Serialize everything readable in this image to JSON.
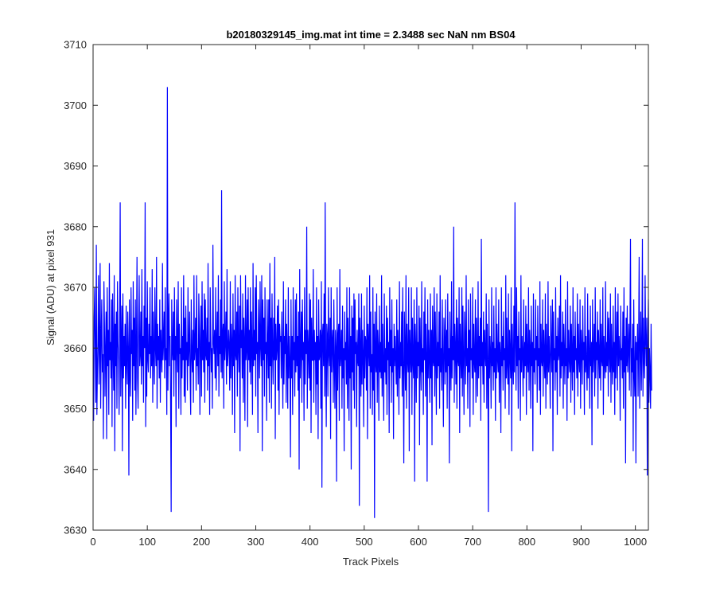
{
  "chart_data": {
    "type": "line",
    "title": "b20180329145_img.mat int time = 2.3488 sec  NaN nm BS04",
    "xlabel": "Track Pixels",
    "ylabel": "Signal (ADU) at pixel 931",
    "xlim": [
      0,
      1024
    ],
    "ylim": [
      3630,
      3710
    ],
    "xticks": [
      0,
      100,
      200,
      300,
      400,
      500,
      600,
      700,
      800,
      900,
      1000
    ],
    "yticks": [
      3630,
      3640,
      3650,
      3660,
      3670,
      3680,
      3690,
      3700,
      3710
    ],
    "grid": false,
    "line_color": "#0000ff",
    "x_start": 1,
    "x_step": 1,
    "values": [
      3648,
      3665,
      3670,
      3659,
      3651,
      3677,
      3649,
      3656,
      3661,
      3672,
      3654,
      3660,
      3674,
      3650,
      3662,
      3668,
      3656,
      3659,
      3645,
      3671,
      3664,
      3652,
      3660,
      3666,
      3645,
      3670,
      3657,
      3663,
      3649,
      3674,
      3658,
      3661,
      3655,
      3668,
      3647,
      3669,
      3660,
      3653,
      3672,
      3643,
      3664,
      3657,
      3666,
      3650,
      3671,
      3661,
      3658,
      3649,
      3663,
      3684,
      3652,
      3660,
      3667,
      3643,
      3669,
      3655,
      3662,
      3657,
      3664,
      3650,
      3667,
      3658,
      3654,
      3666,
      3660,
      3639,
      3668,
      3656,
      3652,
      3670,
      3659,
      3663,
      3648,
      3671,
      3657,
      3665,
      3653,
      3668,
      3649,
      3661,
      3675,
      3655,
      3650,
      3663,
      3672,
      3657,
      3659,
      3666,
      3654,
      3673,
      3657,
      3662,
      3651,
      3667,
      3660,
      3684,
      3647,
      3665,
      3652,
      3671,
      3658,
      3656,
      3664,
      3659,
      3670,
      3655,
      3662,
      3657,
      3673,
      3651,
      3666,
      3659,
      3654,
      3670,
      3660,
      3657,
      3675,
      3650,
      3664,
      3658,
      3662,
      3655,
      3668,
      3651,
      3663,
      3659,
      3656,
      3674,
      3658,
      3661,
      3666,
      3655,
      3670,
      3658,
      3660,
      3649,
      3703,
      3653,
      3664,
      3669,
      3657,
      3662,
      3651,
      3633,
      3668,
      3660,
      3658,
      3666,
      3652,
      3670,
      3658,
      3662,
      3647,
      3668,
      3661,
      3656,
      3671,
      3650,
      3664,
      3659,
      3660,
      3649,
      3670,
      3655,
      3662,
      3658,
      3672,
      3652,
      3665,
      3651,
      3667,
      3658,
      3661,
      3653,
      3670,
      3657,
      3660,
      3666,
      3655,
      3649,
      3668,
      3659,
      3656,
      3663,
      3651,
      3672,
      3658,
      3660,
      3665,
      3653,
      3672,
      3657,
      3660,
      3654,
      3669,
      3663,
      3649,
      3661,
      3667,
      3652,
      3671,
      3658,
      3663,
      3656,
      3669,
      3651,
      3668,
      3659,
      3658,
      3665,
      3653,
      3674,
      3657,
      3661,
      3649,
      3670,
      3662,
      3656,
      3660,
      3650,
      3677,
      3661,
      3659,
      3663,
      3655,
      3670,
      3653,
      3661,
      3666,
      3657,
      3672,
      3652,
      3662,
      3659,
      3668,
      3656,
      3686,
      3655,
      3662,
      3664,
      3650,
      3671,
      3658,
      3661,
      3666,
      3654,
      3673,
      3657,
      3659,
      3663,
      3660,
      3653,
      3671,
      3655,
      3664,
      3661,
      3649,
      3669,
      3657,
      3663,
      3646,
      3672,
      3659,
      3658,
      3666,
      3652,
      3670,
      3660,
      3656,
      3667,
      3643,
      3672,
      3660,
      3663,
      3655,
      3669,
      3651,
      3665,
      3661,
      3648,
      3672,
      3658,
      3660,
      3668,
      3647,
      3670,
      3658,
      3663,
      3656,
      3670,
      3654,
      3666,
      3660,
      3649,
      3674,
      3657,
      3663,
      3658,
      3670,
      3652,
      3672,
      3659,
      3661,
      3646,
      3668,
      3663,
      3655,
      3671,
      3660,
      3657,
      3672,
      3643,
      3668,
      3658,
      3665,
      3652,
      3670,
      3659,
      3661,
      3648,
      3668,
      3661,
      3655,
      3668,
      3651,
      3674,
      3657,
      3665,
      3650,
      3669,
      3660,
      3654,
      3665,
      3658,
      3675,
      3645,
      3664,
      3658,
      3660,
      3667,
      3653,
      3668,
      3649,
      3664,
      3661,
      3662,
      3655,
      3666,
      3659,
      3650,
      3671,
      3654,
      3662,
      3659,
      3668,
      3651,
      3664,
      3659,
      3650,
      3670,
      3655,
      3662,
      3658,
      3642,
      3668,
      3655,
      3662,
      3649,
      3670,
      3658,
      3661,
      3652,
      3668,
      3656,
      3669,
      3657,
      3662,
      3653,
      3666,
      3640,
      3673,
      3655,
      3660,
      3666,
      3651,
      3668,
      3658,
      3661,
      3648,
      3670,
      3654,
      3663,
      3659,
      3680,
      3650,
      3663,
      3660,
      3655,
      3669,
      3653,
      3668,
      3646,
      3665,
      3658,
      3658,
      3673,
      3651,
      3663,
      3658,
      3661,
      3649,
      3670,
      3654,
      3662,
      3645,
      3668,
      3658,
      3659,
      3663,
      3650,
      3671,
      3637,
      3662,
      3664,
      3657,
      3669,
      3652,
      3684,
      3658,
      3647,
      3664,
      3662,
      3652,
      3670,
      3659,
      3657,
      3665,
      3645,
      3670,
      3656,
      3661,
      3663,
      3651,
      3668,
      3658,
      3650,
      3663,
      3660,
      3638,
      3670,
      3653,
      3662,
      3664,
      3648,
      3673,
      3657,
      3659,
      3663,
      3650,
      3667,
      3655,
      3660,
      3643,
      3666,
      3658,
      3661,
      3654,
      3670,
      3650,
      3665,
      3658,
      3648,
      3670,
      3655,
      3662,
      3640,
      3667,
      3656,
      3665,
      3653,
      3669,
      3650,
      3668,
      3659,
      3661,
      3647,
      3663,
      3658,
      3657,
      3669,
      3634,
      3665,
      3660,
      3652,
      3669,
      3654,
      3663,
      3659,
      3647,
      3667,
      3655,
      3662,
      3661,
      3653,
      3670,
      3645,
      3664,
      3660,
      3657,
      3672,
      3650,
      3666,
      3656,
      3659,
      3649,
      3670,
      3653,
      3664,
      3632,
      3666,
      3658,
      3656,
      3669,
      3651,
      3663,
      3660,
      3648,
      3667,
      3656,
      3661,
      3655,
      3672,
      3652,
      3664,
      3657,
      3648,
      3669,
      3656,
      3660,
      3654,
      3667,
      3649,
      3665,
      3658,
      3661,
      3646,
      3670,
      3657,
      3663,
      3651,
      3668,
      3656,
      3660,
      3645,
      3664,
      3657,
      3662,
      3658,
      3654,
      3668,
      3652,
      3663,
      3659,
      3649,
      3671,
      3655,
      3661,
      3657,
      3666,
      3652,
      3670,
      3656,
      3641,
      3666,
      3660,
      3653,
      3672,
      3650,
      3664,
      3658,
      3656,
      3670,
      3643,
      3663,
      3659,
      3656,
      3670,
      3649,
      3665,
      3658,
      3655,
      3668,
      3638,
      3664,
      3660,
      3651,
      3670,
      3655,
      3661,
      3657,
      3667,
      3644,
      3665,
      3658,
      3653,
      3671,
      3656,
      3660,
      3649,
      3666,
      3658,
      3670,
      3652,
      3664,
      3659,
      3638,
      3668,
      3655,
      3663,
      3658,
      3651,
      3669,
      3655,
      3663,
      3644,
      3667,
      3658,
      3657,
      3670,
      3652,
      3666,
      3658,
      3649,
      3669,
      3655,
      3661,
      3657,
      3666,
      3650,
      3672,
      3656,
      3660,
      3653,
      3668,
      3658,
      3647,
      3665,
      3661,
      3654,
      3668,
      3656,
      3663,
      3650,
      3669,
      3657,
      3660,
      3641,
      3666,
      3659,
      3653,
      3671,
      3655,
      3662,
      3658,
      3680,
      3651,
      3664,
      3660,
      3654,
      3668,
      3650,
      3665,
      3658,
      3657,
      3670,
      3646,
      3664,
      3659,
      3655,
      3670,
      3652,
      3667,
      3658,
      3649,
      3666,
      3661,
      3654,
      3672,
      3657,
      3660,
      3650,
      3668,
      3656,
      3663,
      3647,
      3669,
      3658,
      3660,
      3655,
      3670,
      3649,
      3664,
      3658,
      3656,
      3668,
      3651,
      3665,
      3659,
      3652,
      3671,
      3655,
      3662,
      3657,
      3665,
      3648,
      3678,
      3657,
      3661,
      3654,
      3666,
      3651,
      3663,
      3659,
      3657,
      3669,
      3650,
      3664,
      3658,
      3633,
      3668,
      3655,
      3662,
      3659,
      3650,
      3670,
      3657,
      3661,
      3653,
      3667,
      3656,
      3660,
      3648,
      3670,
      3655,
      3664,
      3658,
      3656,
      3668,
      3651,
      3661,
      3659,
      3646,
      3670,
      3657,
      3662,
      3653,
      3666,
      3658,
      3660,
      3650,
      3672,
      3655,
      3665,
      3657,
      3654,
      3669,
      3649,
      3663,
      3659,
      3655,
      3670,
      3643,
      3664,
      3658,
      3654,
      3667,
      3656,
      3684,
      3660,
      3653,
      3670,
      3657,
      3662,
      3650,
      3666,
      3658,
      3660,
      3648,
      3672,
      3656,
      3662,
      3659,
      3652,
      3668,
      3655,
      3661,
      3657,
      3667,
      3649,
      3664,
      3658,
      3656,
      3670,
      3653,
      3663,
      3660,
      3650,
      3667,
      3657,
      3661,
      3643,
      3669,
      3656,
      3660,
      3654,
      3668,
      3658,
      3662,
      3651,
      3667,
      3657,
      3660,
      3653,
      3671,
      3649,
      3664,
      3658,
      3657,
      3668,
      3652,
      3663,
      3659,
      3655,
      3669,
      3650,
      3664,
      3658,
      3654,
      3671,
      3656,
      3662,
      3658,
      3650,
      3667,
      3660,
      3656,
      3668,
      3643,
      3666,
      3658,
      3660,
      3653,
      3670,
      3656,
      3662,
      3649,
      3665,
      3658,
      3659,
      3667,
      3652,
      3672,
      3655,
      3661,
      3657,
      3666,
      3650,
      3664,
      3659,
      3654,
      3668,
      3657,
      3660,
      3648,
      3671,
      3655,
      3663,
      3658,
      3656,
      3667,
      3651,
      3664,
      3659,
      3653,
      3670,
      3656,
      3662,
      3649,
      3666,
      3658,
      3660,
      3655,
      3669,
      3652,
      3664,
      3658,
      3656,
      3668,
      3650,
      3663,
      3660,
      3654,
      3667,
      3658,
      3661,
      3649,
      3670,
      3656,
      3662,
      3657,
      3653,
      3669,
      3655,
      3663,
      3659,
      3650,
      3667,
      3657,
      3661,
      3644,
      3668,
      3656,
      3659,
      3664,
      3652,
      3670,
      3655,
      3661,
      3658,
      3666,
      3650,
      3663,
      3659,
      3655,
      3668,
      3653,
      3664,
      3658,
      3657,
      3670,
      3649,
      3662,
      3658,
      3655,
      3671,
      3656,
      3661,
      3657,
      3666,
      3652,
      3665,
      3659,
      3656,
      3669,
      3651,
      3664,
      3658,
      3654,
      3667,
      3656,
      3661,
      3649,
      3670,
      3655,
      3660,
      3666,
      3653,
      3669,
      3657,
      3662,
      3659,
      3648,
      3667,
      3658,
      3660,
      3655,
      3666,
      3650,
      3670,
      3656,
      3662,
      3641,
      3665,
      3657,
      3667,
      3656,
      3660,
      3664,
      3653,
      3663,
      3678,
      3652,
      3660,
      3656,
      3664,
      3643,
      3668,
      3656,
      3652,
      3662,
      3641,
      3661,
      3658,
      3664,
      3652,
      3661,
      3675,
      3650,
      3659,
      3666,
      3653,
      3660,
      3678,
      3652,
      3665,
      3658,
      3655,
      3672,
      3661,
      3657,
      3665,
      3639,
      3661,
      3668,
      3651,
      3660,
      3656,
      3650,
      3664,
      3653
    ]
  }
}
